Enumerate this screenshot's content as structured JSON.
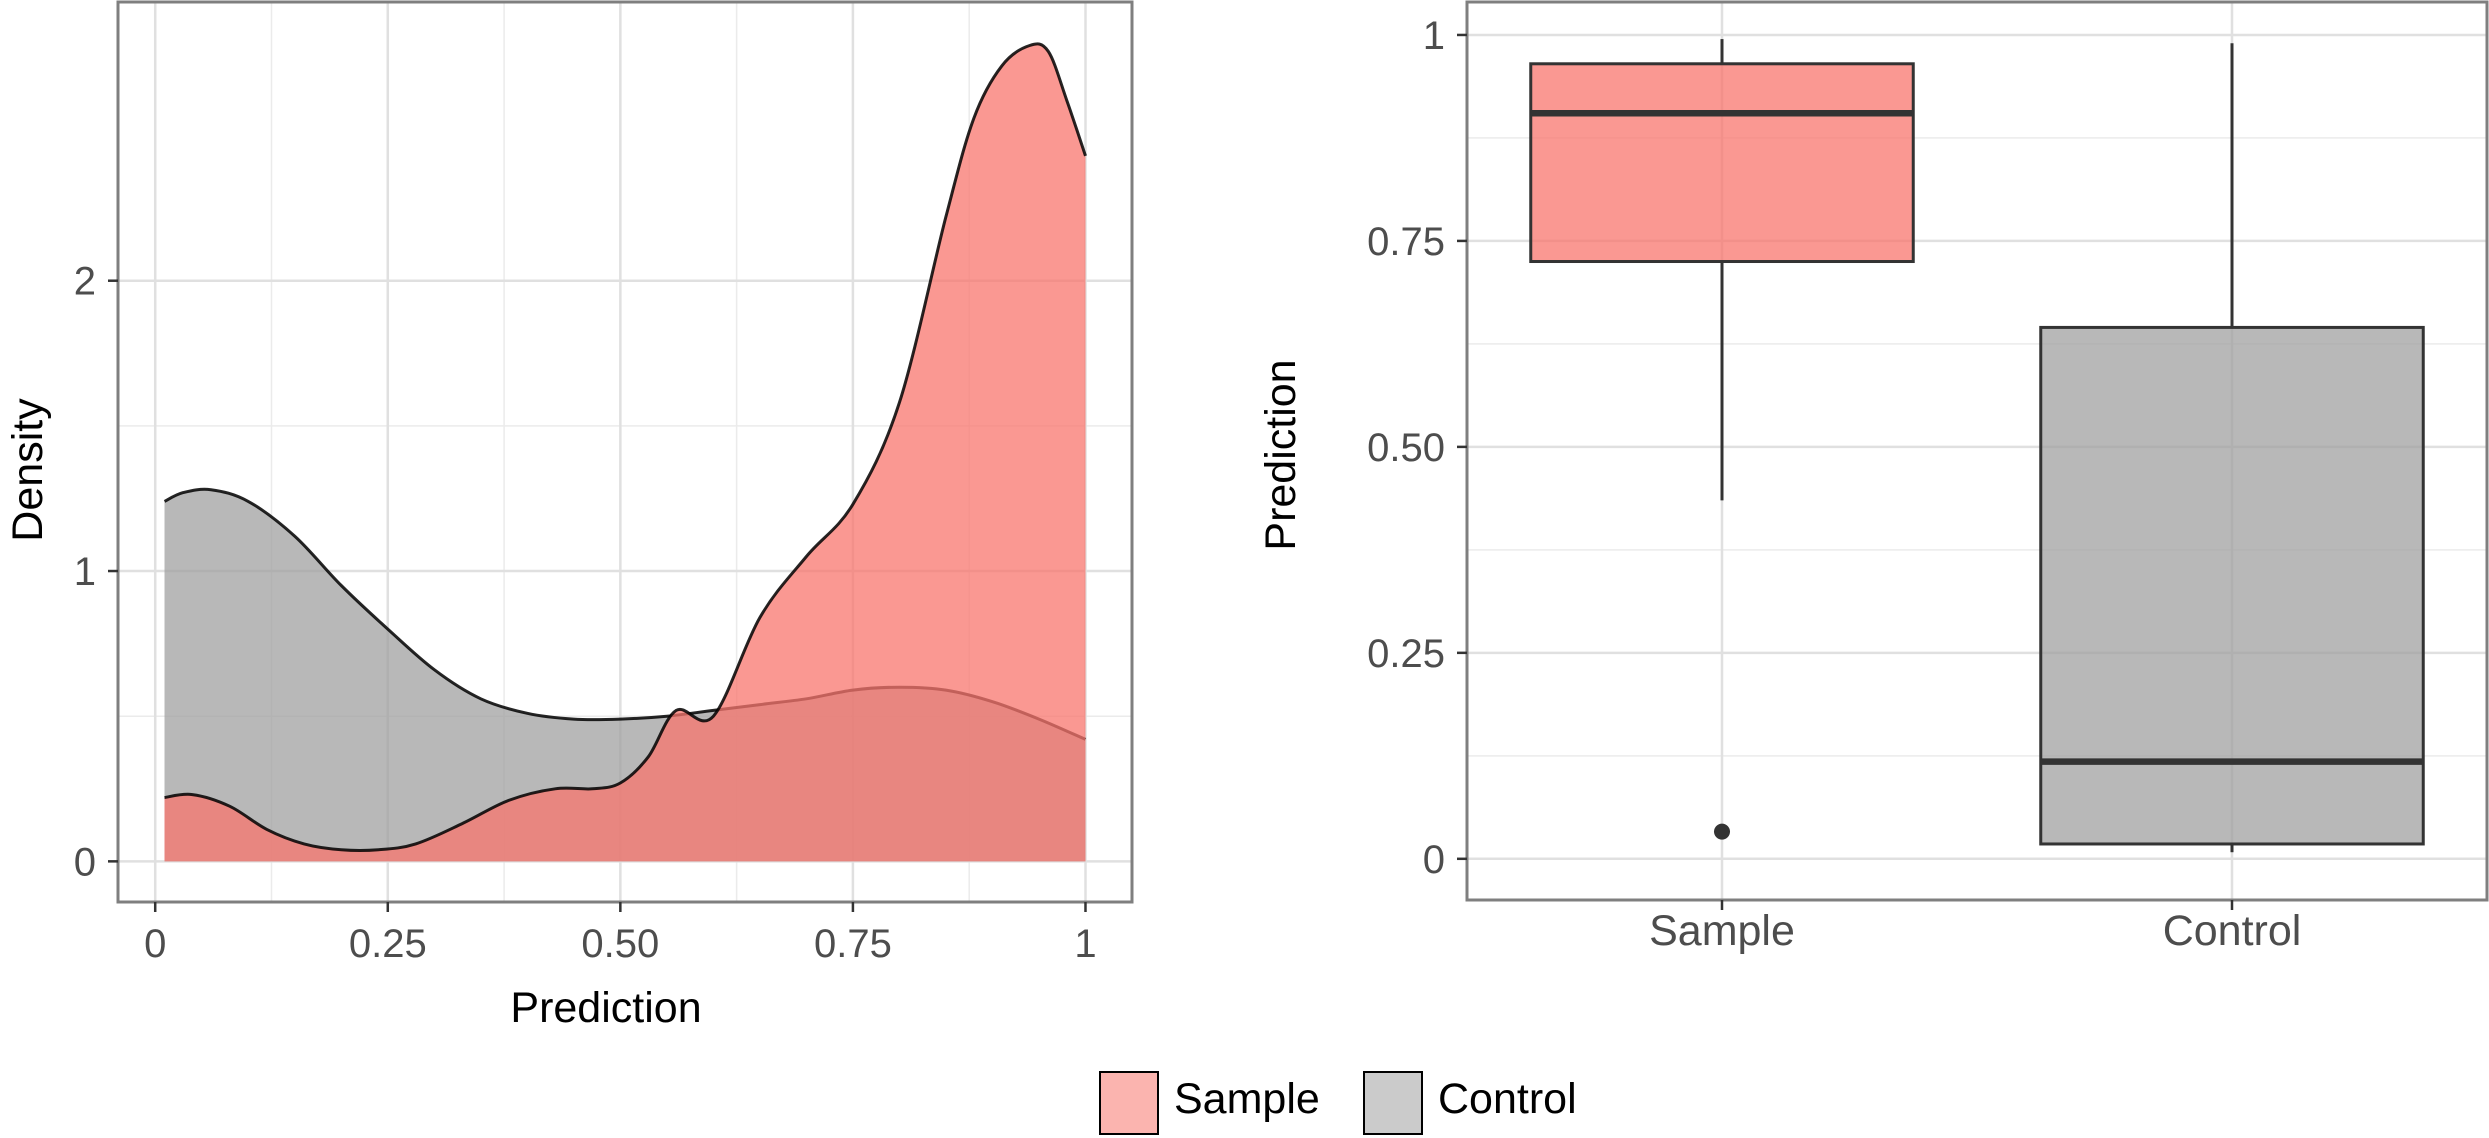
{
  "colors": {
    "sample": "#F8766D",
    "control": "#A0A0A0",
    "grid": "#E0E0E0",
    "panel_border": "#7F7F7F",
    "tick_text": "#4D4D4D",
    "axis_title": "#000000"
  },
  "legend": {
    "position": "bottom",
    "items": [
      {
        "key": "sample",
        "label": "Sample"
      },
      {
        "key": "control",
        "label": "Control"
      }
    ]
  },
  "chart_data": [
    {
      "type": "area",
      "subtype": "density",
      "xlabel": "Prediction",
      "ylabel": "Density",
      "xlim": [
        -0.04,
        1.05
      ],
      "ylim": [
        -0.14,
        2.96
      ],
      "x_ticks": [
        0,
        0.25,
        0.5,
        0.75,
        1
      ],
      "x_tick_labels": [
        "0",
        "0.25",
        "0.50",
        "0.75",
        "1"
      ],
      "y_ticks": [
        0,
        1,
        2
      ],
      "y_tick_labels": [
        "0",
        "1",
        "2"
      ],
      "grid": true,
      "series": [
        {
          "name": "Control",
          "key": "control",
          "x": [
            0.01,
            0.03,
            0.06,
            0.1,
            0.15,
            0.2,
            0.25,
            0.3,
            0.35,
            0.4,
            0.45,
            0.5,
            0.55,
            0.6,
            0.65,
            0.7,
            0.75,
            0.8,
            0.85,
            0.9,
            0.95,
            1.0
          ],
          "y": [
            1.24,
            1.27,
            1.28,
            1.24,
            1.12,
            0.95,
            0.8,
            0.66,
            0.56,
            0.51,
            0.49,
            0.49,
            0.5,
            0.52,
            0.54,
            0.56,
            0.59,
            0.6,
            0.59,
            0.55,
            0.49,
            0.42
          ]
        },
        {
          "name": "Sample",
          "key": "sample",
          "x": [
            0.01,
            0.04,
            0.08,
            0.12,
            0.16,
            0.2,
            0.24,
            0.28,
            0.33,
            0.38,
            0.43,
            0.47,
            0.5,
            0.53,
            0.56,
            0.6,
            0.65,
            0.7,
            0.75,
            0.8,
            0.85,
            0.88,
            0.91,
            0.94,
            0.96,
            0.98,
            1.0
          ],
          "y": [
            0.22,
            0.23,
            0.19,
            0.11,
            0.06,
            0.04,
            0.04,
            0.06,
            0.13,
            0.21,
            0.25,
            0.25,
            0.27,
            0.36,
            0.52,
            0.5,
            0.84,
            1.05,
            1.23,
            1.58,
            2.22,
            2.56,
            2.74,
            2.81,
            2.79,
            2.62,
            2.43
          ]
        }
      ]
    },
    {
      "type": "box",
      "xlabel": "",
      "ylabel": "Prediction",
      "categories": [
        "Sample",
        "Control"
      ],
      "ylim": [
        -0.05,
        1.04
      ],
      "y_ticks": [
        0,
        0.25,
        0.5,
        0.75,
        1
      ],
      "y_tick_labels": [
        "0",
        "0.25",
        "0.50",
        "0.75",
        "1"
      ],
      "grid": true,
      "boxes": [
        {
          "category": "Sample",
          "key": "sample",
          "whisker_low": 0.435,
          "q1": 0.725,
          "median": 0.905,
          "q3": 0.965,
          "whisker_high": 0.995,
          "outliers": [
            0.033
          ]
        },
        {
          "category": "Control",
          "key": "control",
          "whisker_low": 0.008,
          "q1": 0.018,
          "median": 0.118,
          "q3": 0.645,
          "whisker_high": 0.99,
          "outliers": []
        }
      ]
    }
  ]
}
